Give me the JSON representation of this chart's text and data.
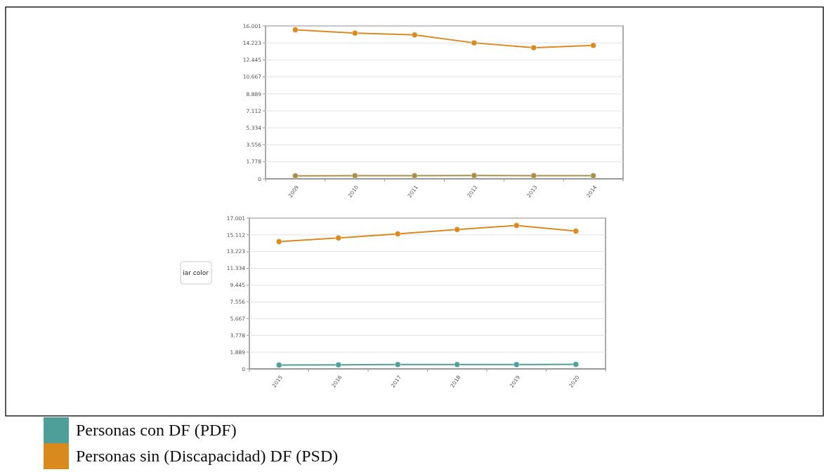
{
  "chart_data": [
    {
      "type": "line",
      "categories": [
        "2009",
        "2010",
        "2011",
        "2012",
        "2013",
        "2014"
      ],
      "series": [
        {
          "color": "#d98a1f",
          "values": [
            15600,
            15250,
            15060,
            14230,
            13720,
            13960
          ]
        },
        {
          "color": "#a89048",
          "values": [
            320,
            330,
            330,
            340,
            330,
            330
          ]
        }
      ],
      "ylim": [
        0,
        16001
      ],
      "yticks": [
        0,
        {
          "value": 1778,
          "label": "1.778"
        },
        {
          "value": 3556,
          "label": "3.556"
        },
        {
          "value": 5334,
          "label": "5.334"
        },
        {
          "value": 7112,
          "label": "7.112"
        },
        {
          "value": 8889,
          "label": "8.889"
        },
        {
          "value": 10667,
          "label": "10.667"
        },
        {
          "value": 12445,
          "label": "12.445"
        },
        {
          "value": 14223,
          "label": "14.223"
        },
        {
          "value": 16001,
          "label": "16.001"
        }
      ],
      "grid": "y",
      "marker": "circle",
      "legend": false
    },
    {
      "type": "line",
      "categories": [
        "2015",
        "2016",
        "2017",
        "2018",
        "2019",
        "2020"
      ],
      "series": [
        {
          "name": "Personas con DF (PDF)",
          "color": "#4e9e9a",
          "values": [
            430,
            460,
            490,
            490,
            490,
            520
          ]
        },
        {
          "name": "Personas sin (Discapacidad) DF (PSD)",
          "color": "#d98a1f",
          "values": [
            14350,
            14760,
            15220,
            15710,
            16170,
            15530
          ]
        }
      ],
      "ylim": [
        0,
        17001
      ],
      "yticks": [
        0,
        {
          "value": 1889,
          "label": "1.889"
        },
        {
          "value": 3778,
          "label": "3.778"
        },
        {
          "value": 5667,
          "label": "5.667"
        },
        {
          "value": 7556,
          "label": "7.556"
        },
        {
          "value": 9445,
          "label": "9.445"
        },
        {
          "value": 11334,
          "label": "11.334"
        },
        {
          "value": 13223,
          "label": "13.223"
        },
        {
          "value": 15112,
          "label": "15.112"
        },
        {
          "value": 17001,
          "label": "17.001"
        }
      ],
      "grid": "y",
      "marker": "circle",
      "legend": "bottom",
      "annotations": [
        "iar color"
      ]
    }
  ]
}
